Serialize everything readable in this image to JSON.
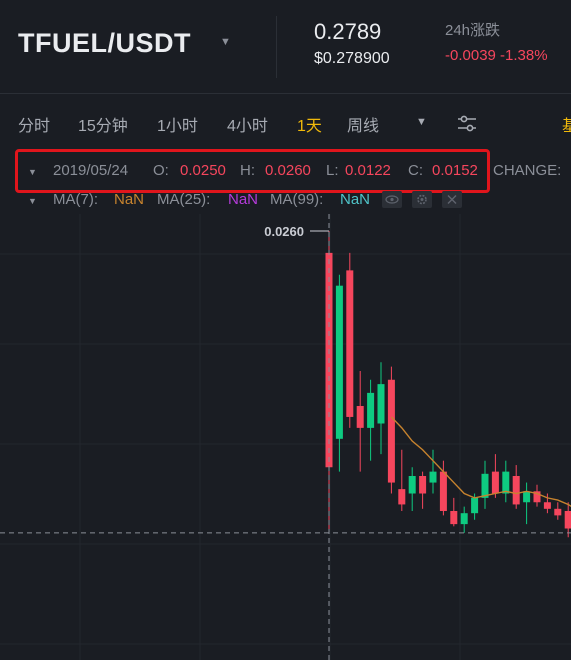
{
  "header": {
    "pair": "TFUEL/USDT",
    "price": "0.2789",
    "price_usd": "$0.278900",
    "change_label": "24h涨跌",
    "change_value": "-0.0039 -1.38%"
  },
  "tabs": [
    {
      "label": "分时",
      "active": false
    },
    {
      "label": "15分钟",
      "active": false
    },
    {
      "label": "1小时",
      "active": false
    },
    {
      "label": "4小时",
      "active": false
    },
    {
      "label": "1天",
      "active": true
    },
    {
      "label": "周线",
      "active": false
    }
  ],
  "tabs_edge_text": "基",
  "ohlc": {
    "date": "2019/05/24",
    "o_label": "O:",
    "o": "0.0250",
    "h_label": "H:",
    "h": "0.0260",
    "l_label": "L:",
    "l": "0.0122",
    "c_label": "C:",
    "c": "0.0152",
    "change_label": "CHANGE:"
  },
  "ma": {
    "ma7_label": "MA(7):",
    "ma7": "NaN",
    "ma25_label": "MA(25):",
    "ma25": "NaN",
    "ma99_label": "MA(99):",
    "ma99": "NaN"
  },
  "chart": {
    "price_tag": "0.0260"
  },
  "colors": {
    "up": "#0ecb81",
    "down": "#f6465d",
    "accent": "#f0b90b",
    "ma7": "#c7832e",
    "highlight": "#e0151c"
  },
  "chart_data": {
    "type": "candlestick",
    "series": [
      {
        "o": 0.025,
        "h": 0.026,
        "l": 0.0122,
        "c": 0.0152
      },
      {
        "o": 0.0165,
        "h": 0.024,
        "l": 0.015,
        "c": 0.0235
      },
      {
        "o": 0.0242,
        "h": 0.025,
        "l": 0.017,
        "c": 0.0175
      },
      {
        "o": 0.018,
        "h": 0.0196,
        "l": 0.015,
        "c": 0.017
      },
      {
        "o": 0.017,
        "h": 0.0192,
        "l": 0.0155,
        "c": 0.0186
      },
      {
        "o": 0.0172,
        "h": 0.02,
        "l": 0.0158,
        "c": 0.019
      },
      {
        "o": 0.0192,
        "h": 0.0198,
        "l": 0.014,
        "c": 0.0145
      },
      {
        "o": 0.0142,
        "h": 0.016,
        "l": 0.0132,
        "c": 0.0135
      },
      {
        "o": 0.014,
        "h": 0.0152,
        "l": 0.0132,
        "c": 0.0148
      },
      {
        "o": 0.0148,
        "h": 0.015,
        "l": 0.0133,
        "c": 0.014
      },
      {
        "o": 0.0145,
        "h": 0.016,
        "l": 0.014,
        "c": 0.015
      },
      {
        "o": 0.015,
        "h": 0.0155,
        "l": 0.013,
        "c": 0.0132
      },
      {
        "o": 0.0132,
        "h": 0.0138,
        "l": 0.0125,
        "c": 0.0126
      },
      {
        "o": 0.0126,
        "h": 0.0134,
        "l": 0.0122,
        "c": 0.0131
      },
      {
        "o": 0.0131,
        "h": 0.014,
        "l": 0.0128,
        "c": 0.0138
      },
      {
        "o": 0.0138,
        "h": 0.0155,
        "l": 0.0133,
        "c": 0.0149
      },
      {
        "o": 0.015,
        "h": 0.0158,
        "l": 0.0138,
        "c": 0.014
      },
      {
        "o": 0.014,
        "h": 0.0155,
        "l": 0.0136,
        "c": 0.015
      },
      {
        "o": 0.0148,
        "h": 0.0153,
        "l": 0.0133,
        "c": 0.0135
      },
      {
        "o": 0.0136,
        "h": 0.0145,
        "l": 0.0126,
        "c": 0.0141
      },
      {
        "o": 0.0141,
        "h": 0.0144,
        "l": 0.0134,
        "c": 0.0136
      },
      {
        "o": 0.0136,
        "h": 0.014,
        "l": 0.0131,
        "c": 0.0133
      },
      {
        "o": 0.0133,
        "h": 0.0136,
        "l": 0.0128,
        "c": 0.013
      },
      {
        "o": 0.0132,
        "h": 0.0136,
        "l": 0.012,
        "c": 0.0124
      },
      {
        "o": 0.0124,
        "h": 0.0128,
        "l": 0.0117,
        "c": 0.012
      },
      {
        "o": 0.012,
        "h": 0.0125,
        "l": 0.0116,
        "c": 0.0118
      },
      {
        "o": 0.0119,
        "h": 0.0125,
        "l": 0.0118,
        "c": 0.0122
      },
      {
        "o": 0.0122,
        "h": 0.0126,
        "l": 0.0119,
        "c": 0.0121
      }
    ],
    "ma7": [
      null,
      null,
      null,
      null,
      null,
      null,
      0.0175,
      0.017,
      0.0164,
      0.016,
      0.0155,
      0.015,
      0.0145,
      0.014,
      0.0138,
      0.0139,
      0.014,
      0.0141,
      0.014,
      0.0141,
      0.014,
      0.0138,
      0.0137,
      0.0135,
      0.0132,
      0.0128,
      0.0125,
      0.0123
    ],
    "crosshair_price": 0.0122
  }
}
